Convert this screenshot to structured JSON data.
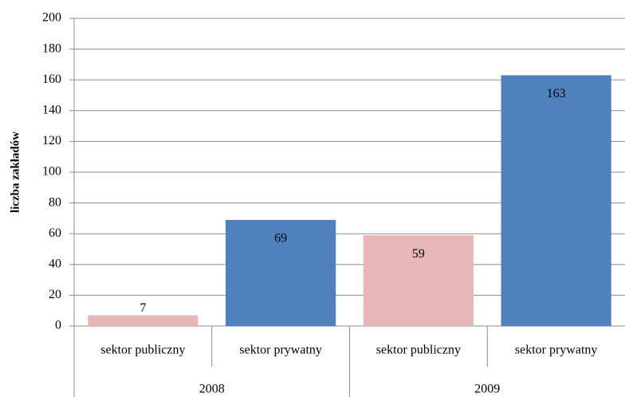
{
  "chart_data": {
    "type": "bar",
    "y_label": "liczba zakładów",
    "categories": [
      "sektor publiczny",
      "sektor prywatny",
      "sektor publiczny",
      "sektor prywatny"
    ],
    "groups": [
      "2008",
      "2009"
    ],
    "values": [
      7,
      69,
      59,
      163
    ],
    "colors": [
      "#e6b9b8",
      "#4f81bd",
      "#e6b9b8",
      "#4f81bd"
    ],
    "ylim": [
      0,
      200
    ],
    "yticks": [
      0,
      20,
      40,
      60,
      80,
      100,
      120,
      140,
      160,
      180,
      200
    ],
    "grid": true
  }
}
